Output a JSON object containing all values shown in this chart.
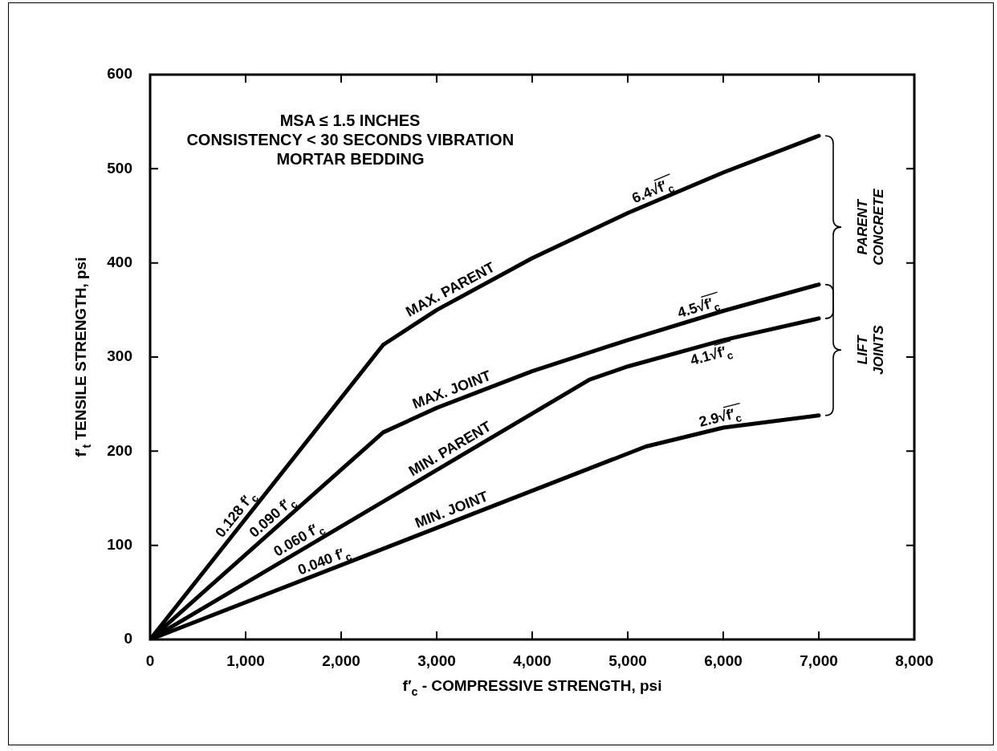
{
  "chart_data": {
    "type": "line",
    "xlabel": "f′$_{c}$ - COMPRESSIVE STRENGTH, psi",
    "ylabel": "f′$_{t}$ TENSILE STRENGTH, psi",
    "xlim": [
      0,
      8000
    ],
    "ylim": [
      0,
      600
    ],
    "xticks": [
      0,
      {
        "value": 1000,
        "label": "1,000"
      },
      {
        "value": 2000,
        "label": "2,000"
      },
      {
        "value": 3000,
        "label": "3,000"
      },
      {
        "value": 4000,
        "label": "4,000"
      },
      {
        "value": 5000,
        "label": "5,000"
      },
      {
        "value": 6000,
        "label": "6,000"
      },
      {
        "value": 7000,
        "label": "7,000"
      },
      {
        "value": 8000,
        "label": "8,000"
      }
    ],
    "yticks": [
      0,
      100,
      200,
      300,
      400,
      500,
      600
    ],
    "series": [
      {
        "name": "MAX. PARENT",
        "color": "#000000",
        "x": [
          0,
          2440,
          3000,
          4000,
          5000,
          6000,
          7000
        ],
        "values": [
          0,
          313,
          350,
          405,
          453,
          496,
          535
        ]
      },
      {
        "name": "MAX. JOINT",
        "color": "#000000",
        "x": [
          0,
          2440,
          3000,
          4000,
          5000,
          6000,
          7000
        ],
        "values": [
          0,
          220,
          246,
          285,
          318,
          349,
          377
        ]
      },
      {
        "name": "MIN. PARENT",
        "color": "#000000",
        "x": [
          0,
          4600,
          5000,
          6000,
          7000
        ],
        "values": [
          0,
          276,
          290,
          318,
          341
        ]
      },
      {
        "name": "MIN. JOINT",
        "color": "#000000",
        "x": [
          0,
          5190,
          6000,
          7000
        ],
        "values": [
          0,
          205,
          225,
          238
        ]
      }
    ],
    "annotations": [
      "MSA ≤ 1.5 INCHES",
      "CONSISTENCY < 30 SECONDS VIBRATION",
      "MORTAR BEDDING",
      {
        "text": "0.128 f′$_{c}$",
        "x": 980,
        "y": 126
      },
      {
        "text": "0.090 f′$_{c}$",
        "x": 1350,
        "y": 122
      },
      {
        "text": "0.060 f′$_{c}$",
        "x": 1610,
        "y": 97
      },
      {
        "text": "0.040 f′$_{c}$",
        "x": 1860,
        "y": 73
      },
      {
        "text": "6.4√f′$_{c}$",
        "x": 5300,
        "y": 466
      },
      {
        "text": "4.5√f′$_{c}$",
        "x": 5770,
        "y": 342
      },
      {
        "text": "4.1√f′$_{c}$",
        "x": 5840,
        "y": 314
      },
      {
        "text": "2.9√f′$_{c}$",
        "x": 5990,
        "y": 225
      },
      "PARENT CONCRETE",
      "LIFT JOINTS"
    ]
  }
}
